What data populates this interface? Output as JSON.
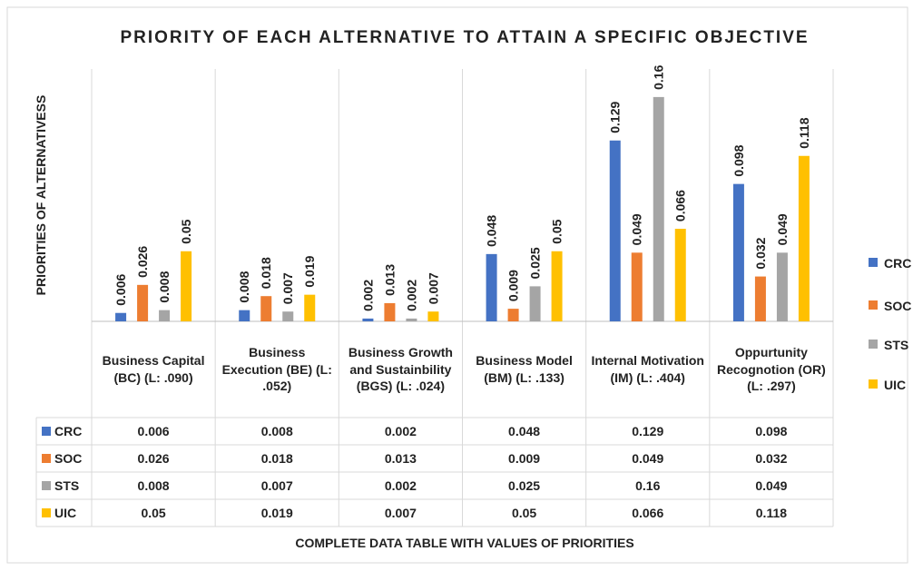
{
  "chart_data": {
    "type": "bar",
    "title": "PRIORITY OF EACH ALTERNATIVE TO ATTAIN A SPECIFIC OBJECTIVE",
    "y_label": "PRIORITIES OF ALTERNATIVESS",
    "x_label": "COMPLETE DATA TABLE WITH VALUES OF PRIORITIES",
    "categories": [
      "Business Capital (BC) (L: .090)",
      "Business Execution (BE) (L: .052)",
      "Business Growth and Sustainbility (BGS) (L: .024)",
      "Business Model (BM) (L: .133)",
      "Internal Motivation (IM) (L: .404)",
      "Oppurtunity Recognotion (OR) (L: .297)"
    ],
    "series": [
      {
        "name": "CRC",
        "color": "#4472c4",
        "values": [
          0.006,
          0.008,
          0.002,
          0.048,
          0.129,
          0.098
        ]
      },
      {
        "name": "SOC",
        "color": "#ed7d31",
        "values": [
          0.026,
          0.018,
          0.013,
          0.009,
          0.049,
          0.032
        ]
      },
      {
        "name": "STS",
        "color": "#a5a5a5",
        "values": [
          0.008,
          0.007,
          0.002,
          0.025,
          0.16,
          0.049
        ]
      },
      {
        "name": "UIC",
        "color": "#ffc000",
        "values": [
          0.05,
          0.019,
          0.007,
          0.05,
          0.066,
          0.118
        ]
      }
    ],
    "ylim": [
      0,
      0.18
    ],
    "legend": "right"
  }
}
